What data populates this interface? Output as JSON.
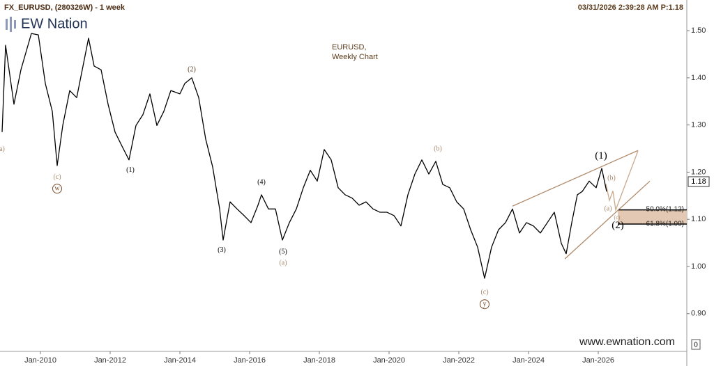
{
  "header": {
    "symbol": "FX_EURUSD, (280326W) - 1 week",
    "timestamp": "03/31/2026 2:39:28 AM P:1.18",
    "logo": "EW Nation",
    "footer": "www.ewnation.com",
    "corner": "0"
  },
  "chart_data": {
    "type": "line",
    "title": "EURUSD,",
    "subtitle": "Weekly Chart",
    "color": "#000000",
    "x": [
      2008.9,
      2009.0,
      2009.24,
      2009.44,
      2009.74,
      2009.94,
      2010.14,
      2010.34,
      2010.48,
      2010.64,
      2010.84,
      2011.04,
      2011.24,
      2011.38,
      2011.54,
      2011.74,
      2011.94,
      2012.14,
      2012.34,
      2012.54,
      2012.74,
      2012.94,
      2013.14,
      2013.34,
      2013.54,
      2013.74,
      2014.0,
      2014.14,
      2014.34,
      2014.54,
      2014.74,
      2014.94,
      2015.14,
      2015.24,
      2015.44,
      2015.64,
      2015.84,
      2016.04,
      2016.24,
      2016.34,
      2016.54,
      2016.74,
      2016.94,
      2017.14,
      2017.34,
      2017.54,
      2017.74,
      2017.94,
      2018.14,
      2018.34,
      2018.54,
      2018.74,
      2018.94,
      2019.14,
      2019.34,
      2019.54,
      2019.74,
      2019.94,
      2020.14,
      2020.34,
      2020.54,
      2020.74,
      2020.94,
      2021.14,
      2021.34,
      2021.54,
      2021.74,
      2021.94,
      2022.14,
      2022.34,
      2022.54,
      2022.74,
      2022.94,
      2023.14,
      2023.34,
      2023.54,
      2023.74,
      2023.94,
      2024.14,
      2024.34,
      2024.54,
      2024.74,
      2024.94,
      2025.08,
      2025.24,
      2025.4,
      2025.54,
      2025.74,
      2025.94,
      2026.1,
      2026.24
    ],
    "values": [
      1.285,
      1.469,
      1.344,
      1.417,
      1.494,
      1.491,
      1.388,
      1.329,
      1.214,
      1.299,
      1.373,
      1.358,
      1.432,
      1.484,
      1.425,
      1.417,
      1.344,
      1.285,
      1.255,
      1.226,
      1.299,
      1.322,
      1.366,
      1.299,
      1.329,
      1.373,
      1.366,
      1.388,
      1.4,
      1.358,
      1.27,
      1.211,
      1.122,
      1.056,
      1.137,
      1.122,
      1.108,
      1.093,
      1.13,
      1.152,
      1.122,
      1.122,
      1.056,
      1.093,
      1.122,
      1.167,
      1.204,
      1.181,
      1.248,
      1.226,
      1.167,
      1.152,
      1.145,
      1.13,
      1.137,
      1.122,
      1.115,
      1.115,
      1.108,
      1.086,
      1.152,
      1.196,
      1.226,
      1.196,
      1.223,
      1.174,
      1.167,
      1.137,
      1.122,
      1.078,
      1.041,
      0.975,
      1.041,
      1.078,
      1.093,
      1.122,
      1.071,
      1.093,
      1.086,
      1.071,
      1.093,
      1.115,
      1.049,
      1.027,
      1.093,
      1.152,
      1.159,
      1.181,
      1.167,
      1.208,
      1.159
    ],
    "xlim": [
      2008.84,
      2028.54
    ],
    "ylim": [
      0.82,
      1.565
    ],
    "xticks": [
      {
        "value": 2010,
        "label": "Jan-2010"
      },
      {
        "value": 2012,
        "label": "Jan-2012"
      },
      {
        "value": 2014,
        "label": "Jan-2014"
      },
      {
        "value": 2016,
        "label": "Jan-2016"
      },
      {
        "value": 2018,
        "label": "Jan-2018"
      },
      {
        "value": 2020,
        "label": "Jan-2020"
      },
      {
        "value": 2022,
        "label": "Jan-2022"
      },
      {
        "value": 2024,
        "label": "Jan-2024"
      },
      {
        "value": 2026,
        "label": "Jan-2026"
      }
    ],
    "yticks": [
      {
        "value": 0.9,
        "label": "0.90"
      },
      {
        "value": 1,
        "label": "1.00"
      },
      {
        "value": 1.1,
        "label": "1.10"
      },
      {
        "value": 1.2,
        "label": "1.20"
      },
      {
        "value": 1.3,
        "label": "1.30"
      },
      {
        "value": 1.4,
        "label": "1.40"
      },
      {
        "value": 1.5,
        "label": "1.50"
      }
    ],
    "last_price": 1.18,
    "fib_levels": [
      {
        "label": "50.0%(1.12)",
        "value": 1.12
      },
      {
        "label": "61.8%(1.09)",
        "value": 1.09
      }
    ],
    "fib_start": 2026.56,
    "lines": [
      {
        "x": [
          2023.54,
          2027.14
        ],
        "y": [
          1.128,
          1.246
        ],
        "color": "#b08a6a"
      },
      {
        "x": [
          2025.04,
          2027.48
        ],
        "y": [
          1.016,
          1.181
        ],
        "color": "#b08a6a"
      },
      {
        "x": [
          2026.22,
          2026.32,
          2026.42,
          2026.5,
          2027.14
        ],
        "y": [
          1.175,
          1.14,
          1.16,
          1.12,
          1.245
        ],
        "color": "#c9a98a"
      }
    ],
    "annotations": [
      {
        "text": "a)",
        "x": 2008.9,
        "y": 1.248,
        "color": "#a88a6e",
        "size": 10
      },
      {
        "text": "(c)",
        "x": 2010.48,
        "y": 1.189,
        "color": "#a88a6e",
        "size": 10
      },
      {
        "text": "w",
        "x": 2010.48,
        "y": 1.165,
        "color": "#7a4a2a",
        "size": 10,
        "circled": true
      },
      {
        "text": "(1)",
        "x": 2012.58,
        "y": 1.204,
        "color": "#000000",
        "size": 10
      },
      {
        "text": "(2)",
        "x": 2014.34,
        "y": 1.417,
        "color": "#5a3a1a",
        "size": 10
      },
      {
        "text": "(3)",
        "x": 2015.2,
        "y": 1.034,
        "color": "#000000",
        "size": 10
      },
      {
        "text": "(4)",
        "x": 2016.34,
        "y": 1.178,
        "color": "#000000",
        "size": 10
      },
      {
        "text": "(5)",
        "x": 2016.96,
        "y": 1.031,
        "color": "#000000",
        "size": 10
      },
      {
        "text": "(a)",
        "x": 2016.96,
        "y": 1.007,
        "color": "#a88a6e",
        "size": 10
      },
      {
        "text": "(b)",
        "x": 2021.4,
        "y": 1.249,
        "color": "#a88a6e",
        "size": 10
      },
      {
        "text": "(c)",
        "x": 2022.74,
        "y": 0.945,
        "color": "#a88a6e",
        "size": 10
      },
      {
        "text": "y",
        "x": 2022.74,
        "y": 0.92,
        "color": "#7a4a2a",
        "size": 10,
        "circled": true
      },
      {
        "text": "(1)",
        "x": 2026.08,
        "y": 1.234,
        "color": "#000000",
        "size": 15
      },
      {
        "text": "(b)",
        "x": 2026.38,
        "y": 1.187,
        "color": "#a88a6e",
        "size": 10
      },
      {
        "text": "(a)",
        "x": 2026.28,
        "y": 1.122,
        "color": "#a88a6e",
        "size": 10
      },
      {
        "text": "(c)",
        "x": 2026.54,
        "y": 1.103,
        "color": "#a88a6e",
        "size": 8
      },
      {
        "text": "(2)",
        "x": 2026.56,
        "y": 1.086,
        "color": "#000000",
        "size": 15
      }
    ]
  }
}
